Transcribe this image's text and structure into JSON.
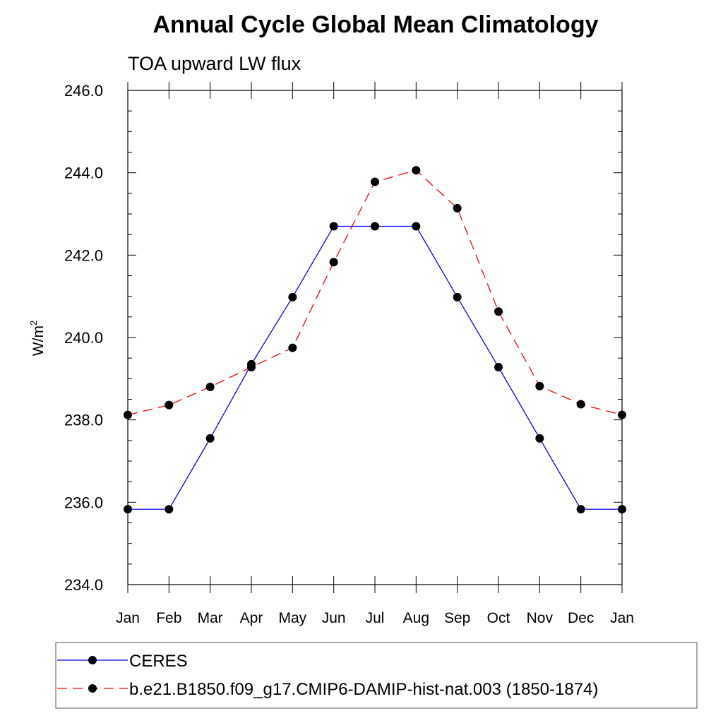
{
  "chart_data": {
    "type": "line",
    "title": "Annual Cycle Global Mean Climatology",
    "subtitle": "TOA upward LW flux",
    "xlabel": "",
    "ylabel": "W/m",
    "ylabel_superscript": "2",
    "categories": [
      "Jan",
      "Feb",
      "Mar",
      "Apr",
      "May",
      "Jun",
      "Jul",
      "Aug",
      "Sep",
      "Oct",
      "Nov",
      "Dec",
      "Jan"
    ],
    "ylim": [
      234.0,
      246.0
    ],
    "yticks": [
      "234.0",
      "236.0",
      "238.0",
      "240.0",
      "242.0",
      "244.0",
      "246.0"
    ],
    "series": [
      {
        "name": "CERES",
        "color": "#0000ff",
        "dash": "solid",
        "marker": "circle",
        "values": [
          235.83,
          235.83,
          237.55,
          239.35,
          240.98,
          242.7,
          242.7,
          242.7,
          240.98,
          239.28,
          237.55,
          235.83,
          235.83
        ]
      },
      {
        "name": "b.e21.B1850.f09_g17.CMIP6-DAMIP-hist-nat.003 (1850-1874)",
        "color": "#ff0000",
        "dash": "dashed",
        "marker": "circle",
        "values": [
          238.12,
          238.36,
          238.8,
          239.28,
          239.75,
          241.83,
          243.78,
          244.06,
          243.14,
          240.63,
          238.82,
          238.38,
          238.12
        ]
      }
    ],
    "legend_position": "bottom"
  }
}
